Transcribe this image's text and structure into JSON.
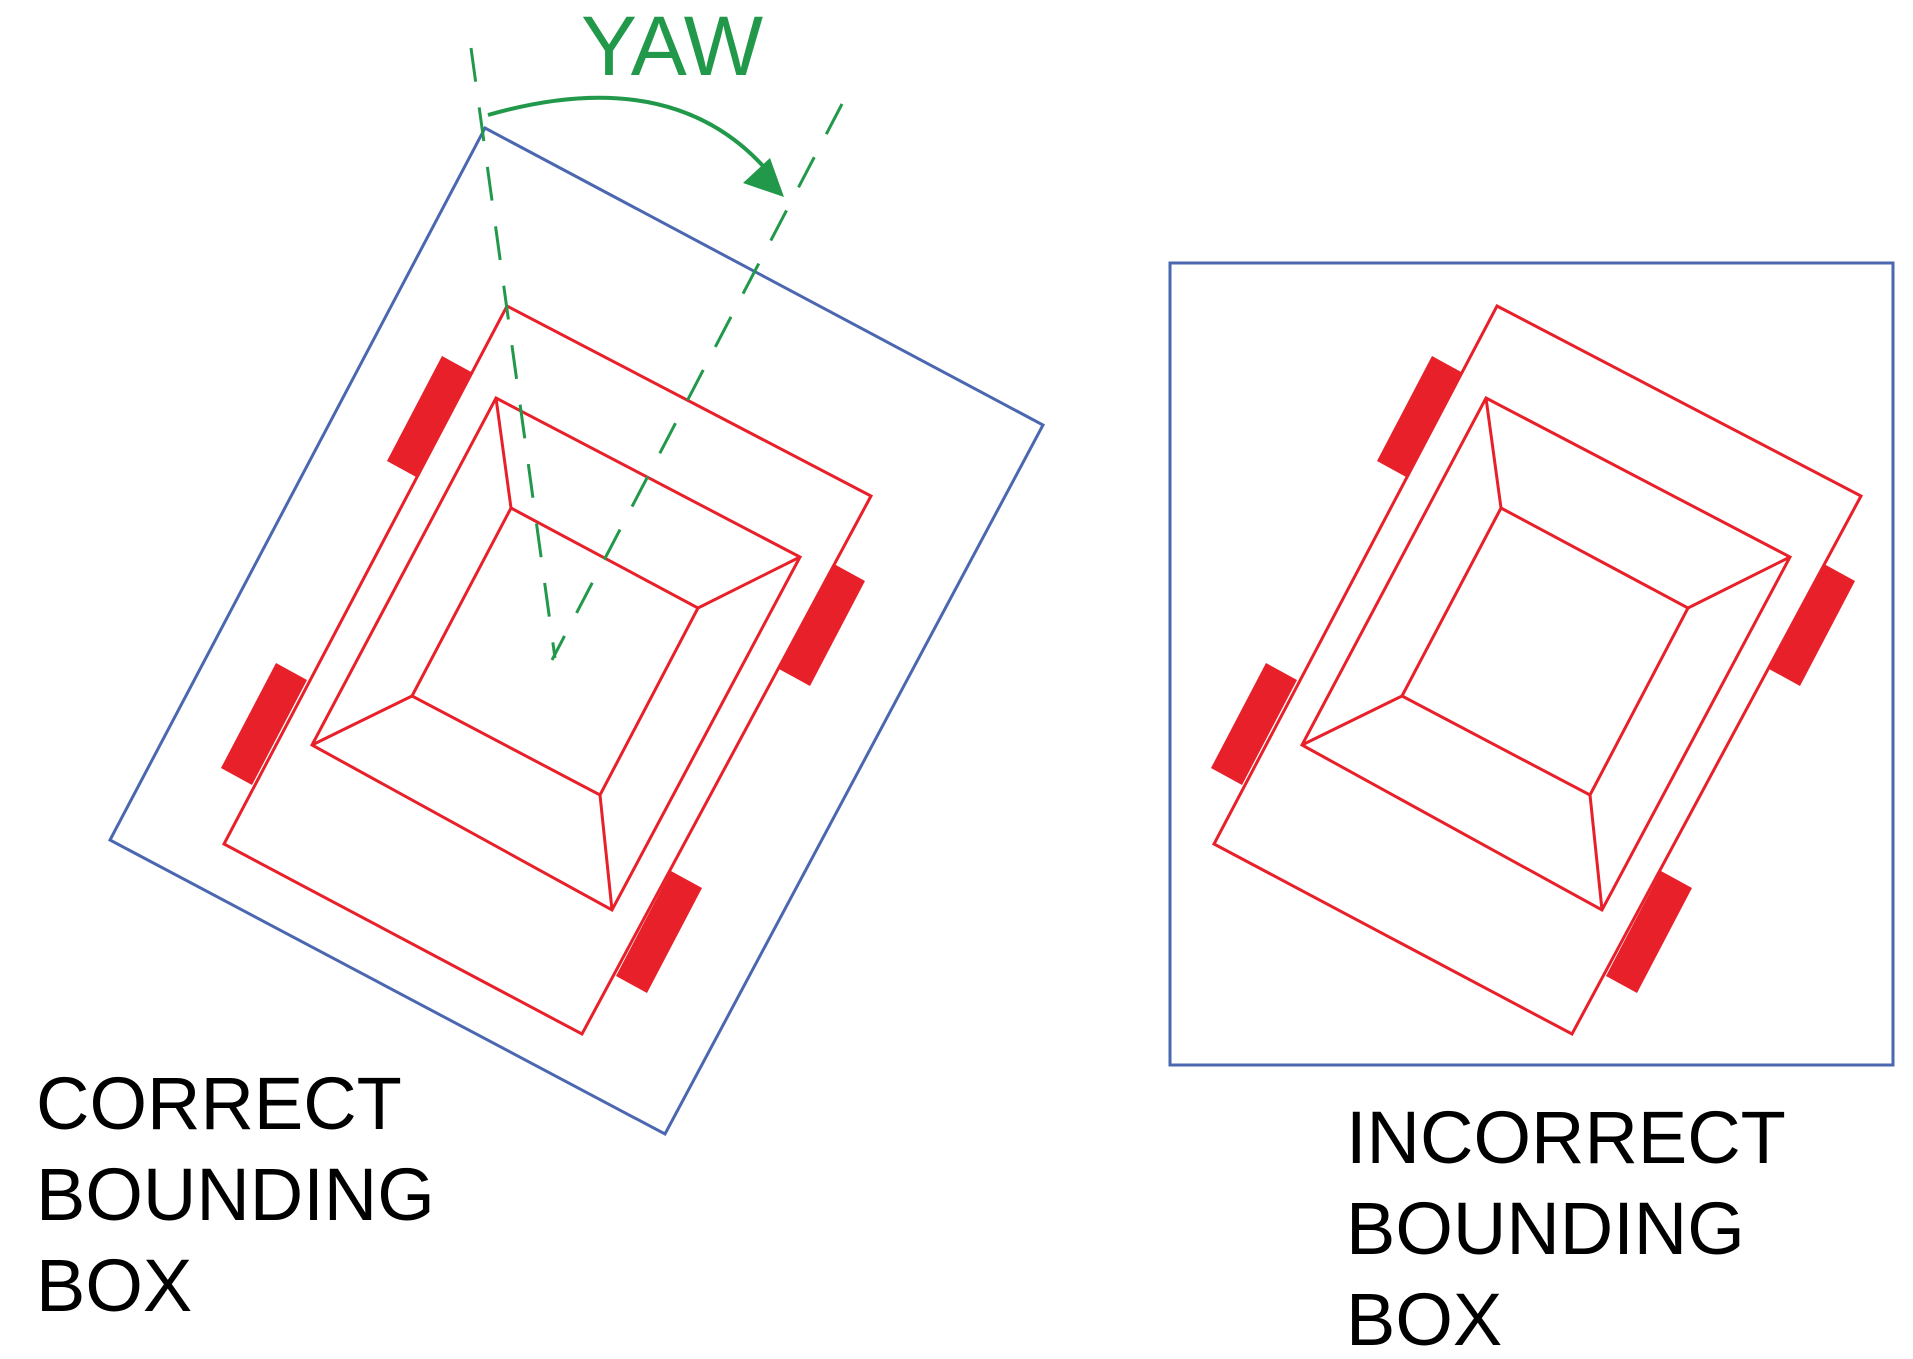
{
  "colors": {
    "bounding_box": "#4a67b0",
    "vehicle": "#e8202a",
    "yaw": "#22994a",
    "text": "#000000"
  },
  "yaw": {
    "label": "YAW"
  },
  "correct": {
    "line1": "CORRECT",
    "line2": "BOUNDING",
    "line3": "BOX"
  },
  "incorrect": {
    "line1": "INCORRECT",
    "line2": "BOUNDING",
    "line3": "BOX"
  }
}
